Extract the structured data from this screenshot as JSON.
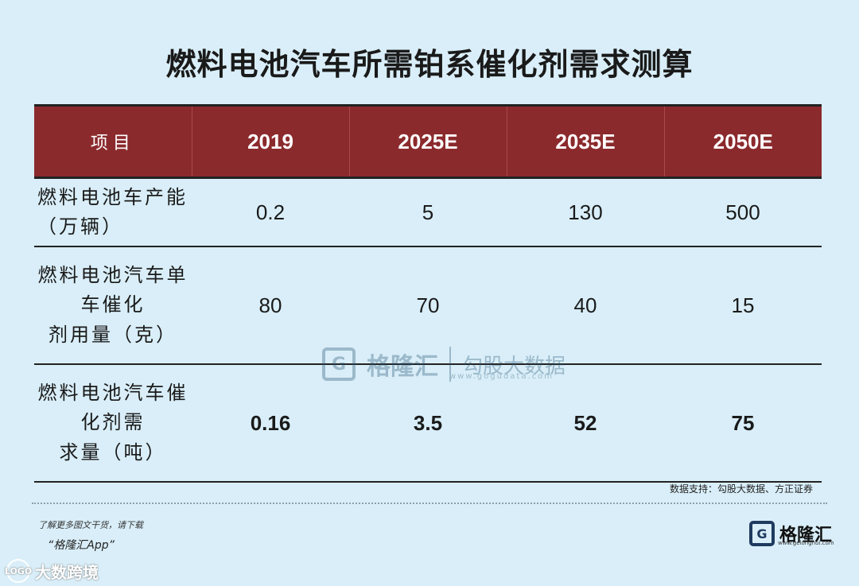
{
  "title": "燃料电池汽车所需铂系催化剂需求测算",
  "header": {
    "item_label": "项目"
  },
  "chart_data": {
    "type": "table",
    "columns": [
      "项目",
      "2019",
      "2025E",
      "2035E",
      "2050E"
    ],
    "rows": [
      {
        "label_lines": [
          "燃料电池车产能（万辆）"
        ],
        "values": [
          "0.2",
          "5",
          "130",
          "500"
        ]
      },
      {
        "label_lines": [
          "燃料电池汽车单车催化",
          "剂用量（克）"
        ],
        "values": [
          "80",
          "70",
          "40",
          "15"
        ]
      },
      {
        "label_lines": [
          "燃料电池汽车催化剂需",
          "求量（吨）"
        ],
        "values": [
          "0.16",
          "3.5",
          "52",
          "75"
        ]
      }
    ]
  },
  "source": "数据支持：勾股大数据、方正证券",
  "promo": {
    "line1": "了解更多图文干货，请下载",
    "line2": "“格隆汇App”"
  },
  "watermark": {
    "logo_letter": "G",
    "name": "格隆汇",
    "name2": "勾股大数据",
    "url": "www.gogudata.com"
  },
  "logo": {
    "letter": "G",
    "name": "格隆汇",
    "url": "www.gelonghui.com"
  },
  "corner_mark": {
    "text": "大数跨境",
    "badge": "LOGO"
  },
  "colors": {
    "background": "#d9eef8",
    "header": "#8b2a2d"
  }
}
